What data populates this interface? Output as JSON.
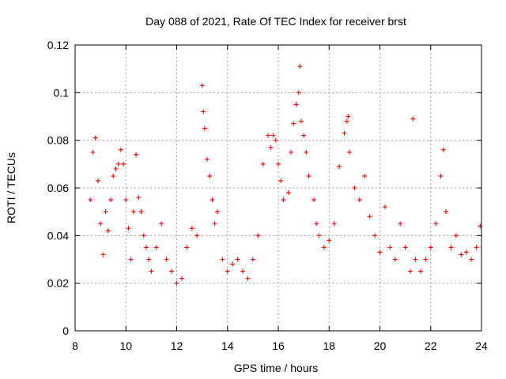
{
  "chart_data": {
    "type": "scatter",
    "title": "Day 088 of 2021, Rate Of TEC Index for receiver brst",
    "xlabel": "GPS time / hours",
    "ylabel": "ROTI / TECUs",
    "xlim": [
      8,
      24
    ],
    "ylim": [
      0,
      0.12
    ],
    "x_ticks": [
      "8",
      "10",
      "12",
      "14",
      "16",
      "18",
      "20",
      "22",
      "24"
    ],
    "y_ticks": [
      "0",
      "0.02",
      "0.04",
      "0.06",
      "0.08",
      "0.1",
      "0.12"
    ],
    "grid": true,
    "marker": "plus",
    "series_color": "#ff0000",
    "series": [
      {
        "x": [
          8.6,
          8.7,
          8.8,
          8.9,
          9.0,
          9.1,
          9.2,
          9.3,
          9.4,
          9.5,
          9.6,
          9.7,
          9.8,
          9.9,
          10.0,
          10.1,
          10.2,
          10.3,
          10.4,
          10.5,
          10.6,
          10.7,
          10.8,
          10.9,
          11.0,
          11.2,
          11.4,
          11.6,
          11.8,
          12.0,
          12.2,
          12.4,
          12.6,
          12.8,
          13.0,
          13.05,
          13.1,
          13.2,
          13.3,
          13.4,
          13.5,
          13.6,
          13.8,
          14.0,
          14.2,
          14.4,
          14.6,
          14.8,
          15.0,
          15.2,
          15.4,
          15.6,
          15.7,
          15.8,
          15.9,
          16.0,
          16.1,
          16.2,
          16.4,
          16.5,
          16.6,
          16.7,
          16.8,
          16.85,
          16.9,
          17.0,
          17.1,
          17.2,
          17.4,
          17.5,
          17.6,
          17.8,
          18.0,
          18.2,
          18.4,
          18.6,
          18.7,
          18.75,
          18.8,
          19.0,
          19.2,
          19.4,
          19.6,
          19.8,
          20.0,
          20.2,
          20.4,
          20.6,
          20.8,
          21.0,
          21.2,
          21.3,
          21.4,
          21.6,
          21.8,
          22.0,
          22.2,
          22.4,
          22.5,
          22.6,
          22.8,
          23.0,
          23.2,
          23.4,
          23.6,
          23.8,
          23.95
        ],
        "y": [
          0.055,
          0.075,
          0.081,
          0.063,
          0.045,
          0.032,
          0.05,
          0.042,
          0.055,
          0.065,
          0.068,
          0.07,
          0.076,
          0.07,
          0.055,
          0.043,
          0.03,
          0.05,
          0.074,
          0.056,
          0.05,
          0.04,
          0.035,
          0.03,
          0.025,
          0.035,
          0.045,
          0.03,
          0.025,
          0.02,
          0.022,
          0.035,
          0.043,
          0.04,
          0.103,
          0.092,
          0.085,
          0.072,
          0.065,
          0.055,
          0.045,
          0.05,
          0.03,
          0.025,
          0.028,
          0.03,
          0.025,
          0.022,
          0.03,
          0.04,
          0.07,
          0.082,
          0.077,
          0.082,
          0.08,
          0.07,
          0.063,
          0.055,
          0.058,
          0.075,
          0.087,
          0.095,
          0.1,
          0.111,
          0.088,
          0.082,
          0.075,
          0.065,
          0.055,
          0.045,
          0.04,
          0.035,
          0.038,
          0.045,
          0.069,
          0.083,
          0.088,
          0.09,
          0.075,
          0.06,
          0.055,
          0.065,
          0.048,
          0.04,
          0.033,
          0.052,
          0.035,
          0.03,
          0.045,
          0.035,
          0.025,
          0.089,
          0.03,
          0.025,
          0.03,
          0.035,
          0.045,
          0.065,
          0.076,
          0.05,
          0.035,
          0.04,
          0.032,
          0.033,
          0.03,
          0.035,
          0.044
        ]
      }
    ]
  }
}
